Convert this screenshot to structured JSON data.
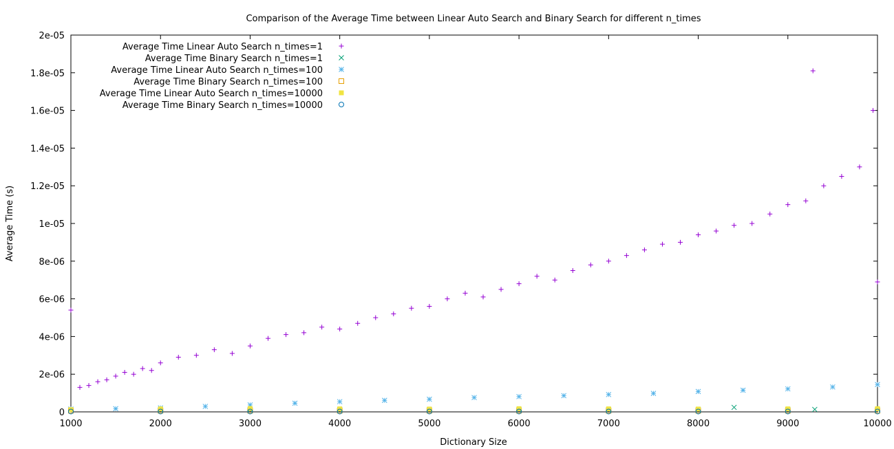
{
  "chart_data": {
    "type": "scatter",
    "title": "Comparison of the Average Time between Linear Auto Search and Binary Search for different n_times",
    "xlabel": "Dictionary Size",
    "ylabel": "Average Time (s)",
    "xlim": [
      1000,
      10000
    ],
    "ylim": [
      0,
      2e-05
    ],
    "x_ticks": [
      1000,
      2000,
      3000,
      4000,
      5000,
      6000,
      7000,
      8000,
      9000,
      10000
    ],
    "x_tick_labels": [
      "1000",
      "2000",
      "3000",
      "4000",
      "5000",
      "6000",
      "7000",
      "8000",
      "9000",
      "10000"
    ],
    "y_ticks": [
      0,
      2e-06,
      4e-06,
      6e-06,
      8e-06,
      1e-05,
      1.2e-05,
      1.4e-05,
      1.6e-05,
      1.8e-05,
      2e-05
    ],
    "y_tick_labels": [
      "0",
      "2e-06",
      "4e-06",
      "6e-06",
      "8e-06",
      "1e-05",
      "1.2e-05",
      "1.4e-05",
      "1.6e-05",
      "1.8e-05",
      "2e-05"
    ],
    "grid": false,
    "legend_position": "top-left",
    "series": [
      {
        "name": "Average Time Linear Auto Search n_times=1",
        "color": "#9400d3",
        "marker": "plus",
        "x": [
          1000,
          1100,
          1200,
          1300,
          1400,
          1500,
          1600,
          1700,
          1800,
          1900,
          2000,
          2200,
          2400,
          2600,
          2800,
          3000,
          3200,
          3400,
          3600,
          3800,
          4000,
          4200,
          4400,
          4600,
          4800,
          5000,
          5200,
          5400,
          5600,
          5800,
          6000,
          6200,
          6400,
          6600,
          6800,
          7000,
          7200,
          7400,
          7600,
          7800,
          8000,
          8200,
          8400,
          8600,
          8800,
          9000,
          9200,
          9280,
          9400,
          9600,
          9800,
          9950,
          10000
        ],
        "y": [
          5.4e-06,
          1.3e-06,
          1.4e-06,
          1.6e-06,
          1.7e-06,
          1.9e-06,
          2.1e-06,
          2e-06,
          2.3e-06,
          2.2e-06,
          2.6e-06,
          2.9e-06,
          3e-06,
          3.3e-06,
          3.1e-06,
          3.5e-06,
          3.9e-06,
          4.1e-06,
          4.2e-06,
          4.5e-06,
          4.4e-06,
          4.7e-06,
          5e-06,
          5.2e-06,
          5.5e-06,
          5.6e-06,
          6e-06,
          6.3e-06,
          6.1e-06,
          6.5e-06,
          6.8e-06,
          7.2e-06,
          7e-06,
          7.5e-06,
          7.8e-06,
          8e-06,
          8.3e-06,
          8.6e-06,
          8.9e-06,
          9e-06,
          9.4e-06,
          9.6e-06,
          9.9e-06,
          1e-05,
          1.05e-05,
          1.1e-05,
          1.12e-05,
          1.81e-05,
          1.2e-05,
          1.25e-05,
          1.3e-05,
          1.6e-05,
          6.9e-06
        ]
      },
      {
        "name": "Average Time Binary Search n_times=1",
        "color": "#009e73",
        "marker": "cross",
        "x": [
          1000,
          2000,
          3000,
          4000,
          5000,
          6000,
          7000,
          8000,
          8400,
          9000,
          9300,
          10000
        ],
        "y": [
          1.2e-07,
          1.1e-07,
          1.2e-07,
          1.1e-07,
          1.2e-07,
          1.2e-07,
          1.1e-07,
          1.2e-07,
          2.4e-07,
          1.2e-07,
          1.3e-07,
          1.2e-07
        ]
      },
      {
        "name": "Average Time Linear Auto Search n_times=100",
        "color": "#56b4e9",
        "marker": "star",
        "x": [
          1000,
          1500,
          2000,
          2500,
          3000,
          3500,
          4000,
          4500,
          5000,
          5500,
          6000,
          6500,
          7000,
          7500,
          8000,
          8500,
          9000,
          9500,
          10000
        ],
        "y": [
          1.5e-07,
          1.7e-07,
          2.1e-07,
          2.9e-07,
          3.7e-07,
          4.6e-07,
          5.4e-07,
          6.1e-07,
          6.7e-07,
          7.6e-07,
          8.1e-07,
          8.6e-07,
          9.2e-07,
          9.8e-07,
          1.08e-06,
          1.15e-06,
          1.22e-06,
          1.32e-06,
          1.45e-06
        ]
      },
      {
        "name": "Average Time Binary Search n_times=100",
        "color": "#e69f00",
        "marker": "box",
        "x": [
          1000,
          2000,
          3000,
          4000,
          5000,
          6000,
          7000,
          8000,
          9000,
          10000
        ],
        "y": [
          6e-08,
          6e-08,
          6e-08,
          6e-08,
          6e-08,
          6e-08,
          6e-08,
          6e-08,
          6e-08,
          6e-08
        ]
      },
      {
        "name": "Average Time Linear Auto Search n_times=10000",
        "color": "#f0e442",
        "marker": "filled-box",
        "x": [
          1000,
          2000,
          3000,
          4000,
          5000,
          6000,
          7000,
          8000,
          9000,
          10000
        ],
        "y": [
          1.2e-07,
          1.6e-07,
          1.8e-07,
          1.6e-07,
          1.5e-07,
          1.7e-07,
          1.6e-07,
          1.5e-07,
          1.6e-07,
          1.7e-07
        ]
      },
      {
        "name": "Average Time Binary Search n_times=10000",
        "color": "#0072b2",
        "marker": "circle",
        "x": [
          1000,
          2000,
          3000,
          4000,
          5000,
          6000,
          7000,
          8000,
          9000,
          10000
        ],
        "y": [
          2e-08,
          2e-08,
          2e-08,
          2e-08,
          2e-08,
          2e-08,
          2e-08,
          2e-08,
          2e-08,
          2e-08
        ]
      }
    ]
  }
}
